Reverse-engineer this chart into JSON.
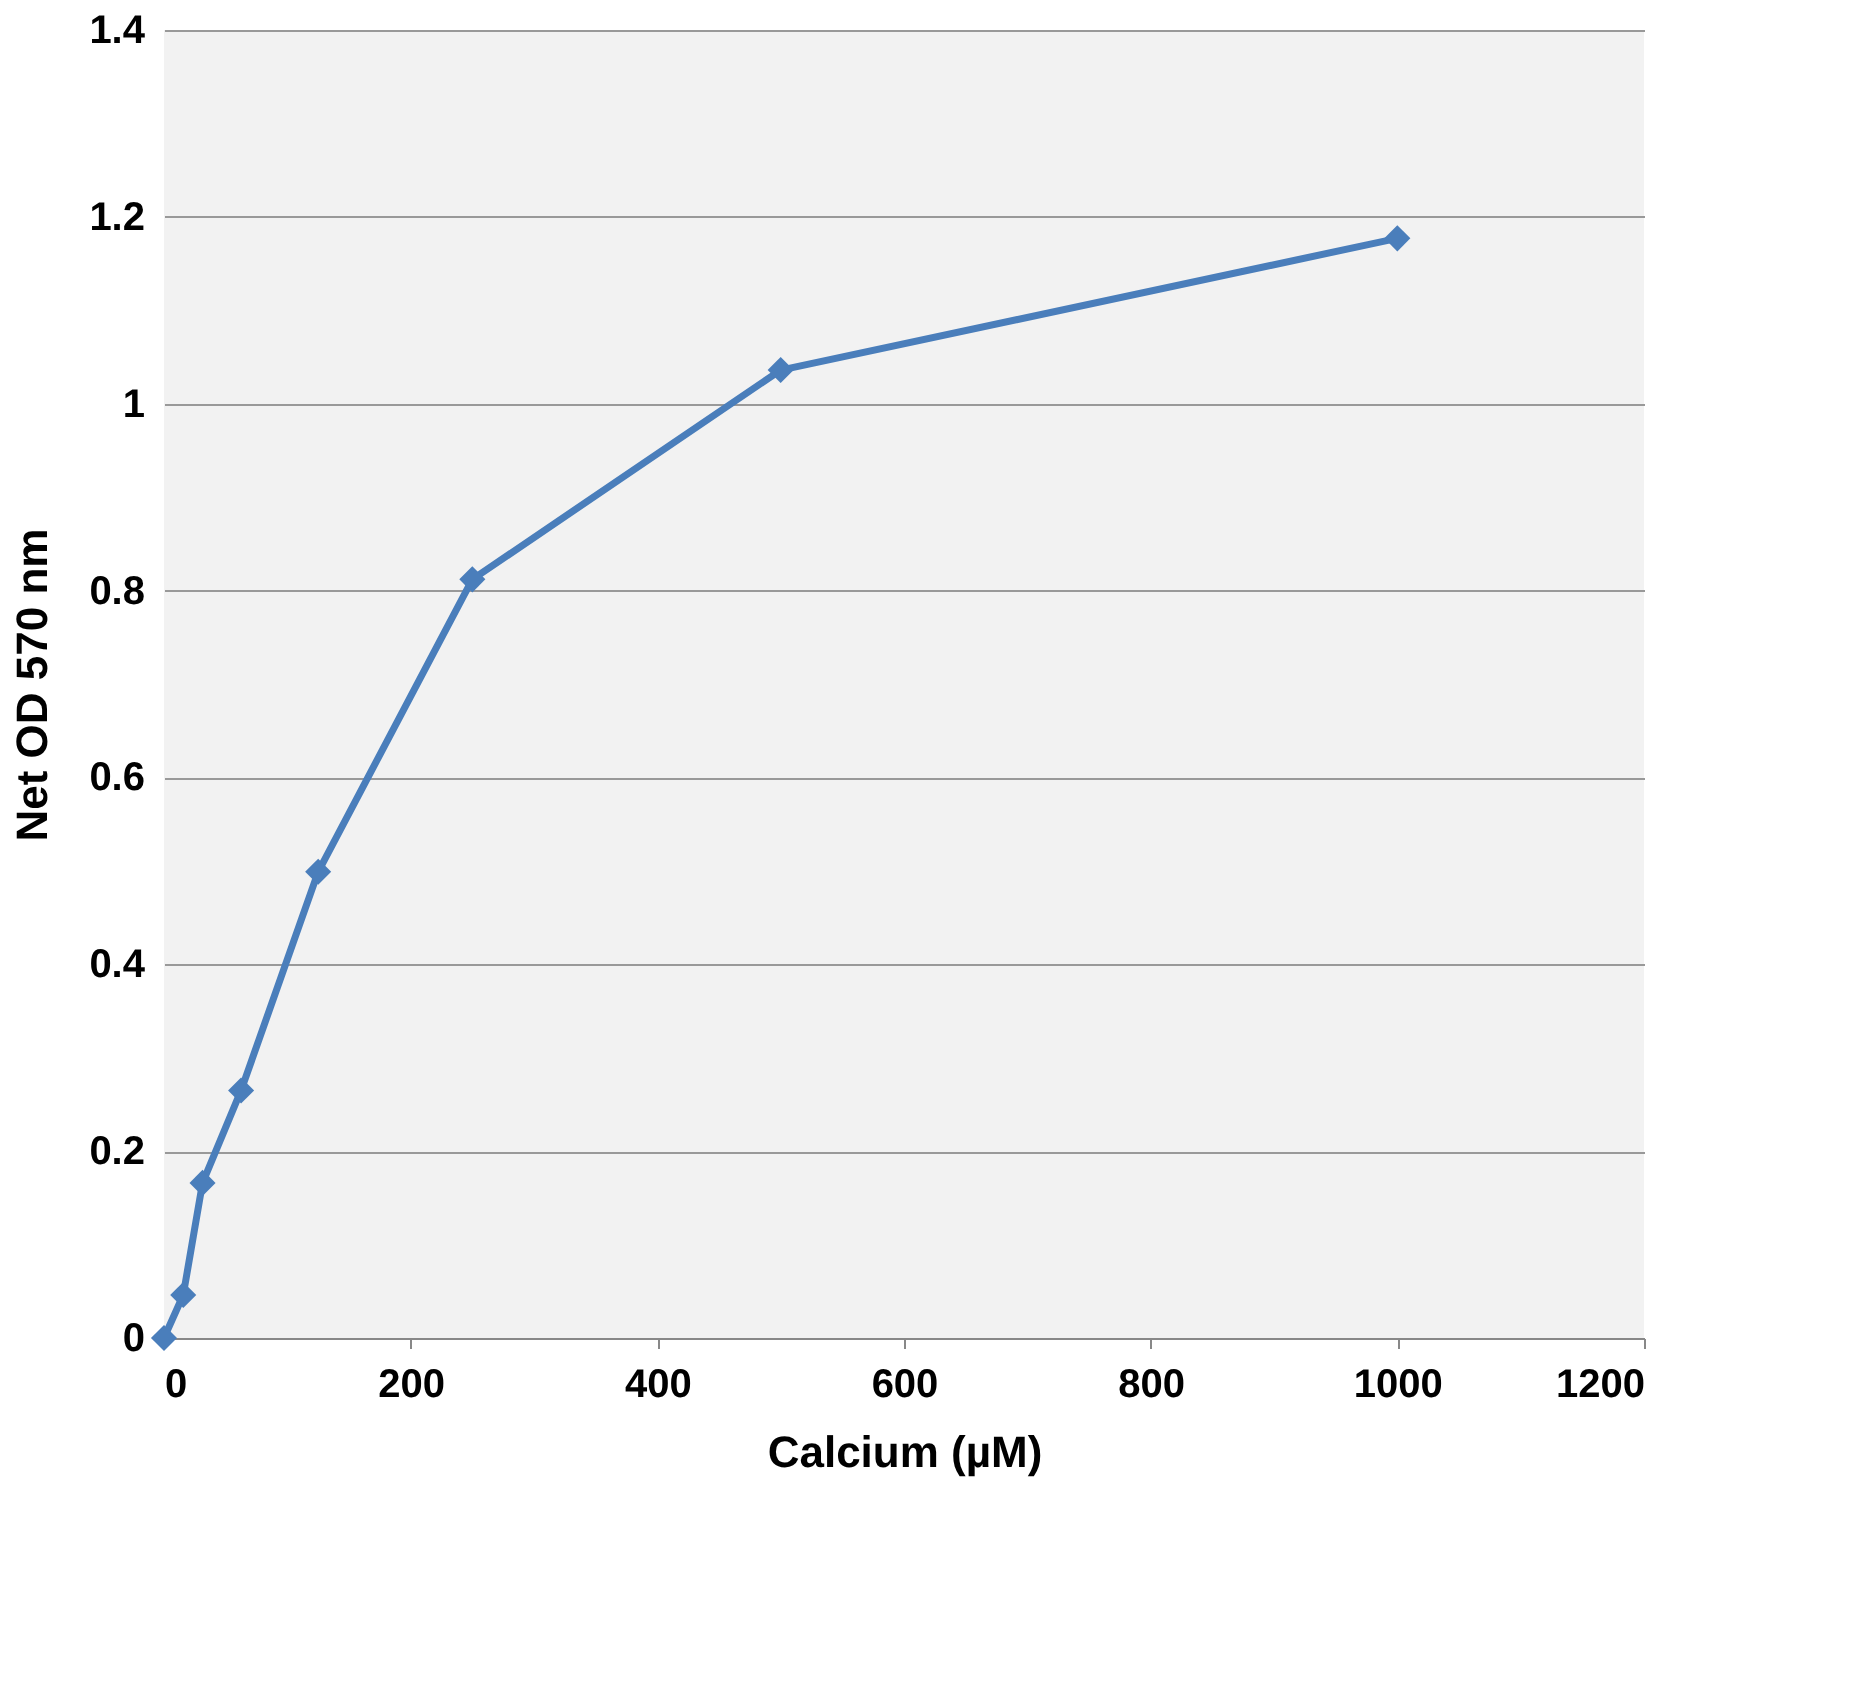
{
  "chart_data": {
    "type": "line",
    "xlabel": "Calcium (µM)",
    "ylabel": "Net OD 570 nm",
    "x": [
      0,
      15.6,
      31.25,
      62.5,
      125,
      250,
      500,
      1000
    ],
    "series": [
      {
        "color": "#4a7ebb",
        "values": [
          0,
          0.046,
          0.166,
          0.265,
          0.499,
          0.812,
          1.036,
          1.177
        ]
      }
    ],
    "xlim": [
      0,
      1200
    ],
    "xticks": [
      0,
      200,
      400,
      600,
      800,
      1000,
      1200
    ],
    "ylim": [
      0,
      1.4
    ],
    "yticks": [
      0,
      0.2,
      0.4,
      0.6,
      0.8,
      1,
      1.2,
      1.4
    ],
    "grid": "y",
    "marker": "diamond",
    "line_style": "solid"
  }
}
